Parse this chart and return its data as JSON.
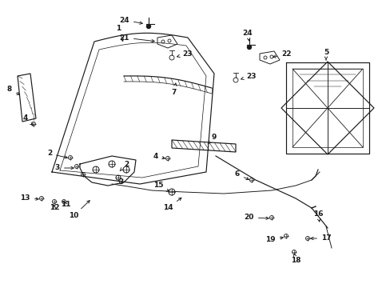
{
  "background": "#ffffff",
  "figsize": [
    4.89,
    3.6
  ],
  "dpi": 100,
  "line_color": "#1a1a1a"
}
